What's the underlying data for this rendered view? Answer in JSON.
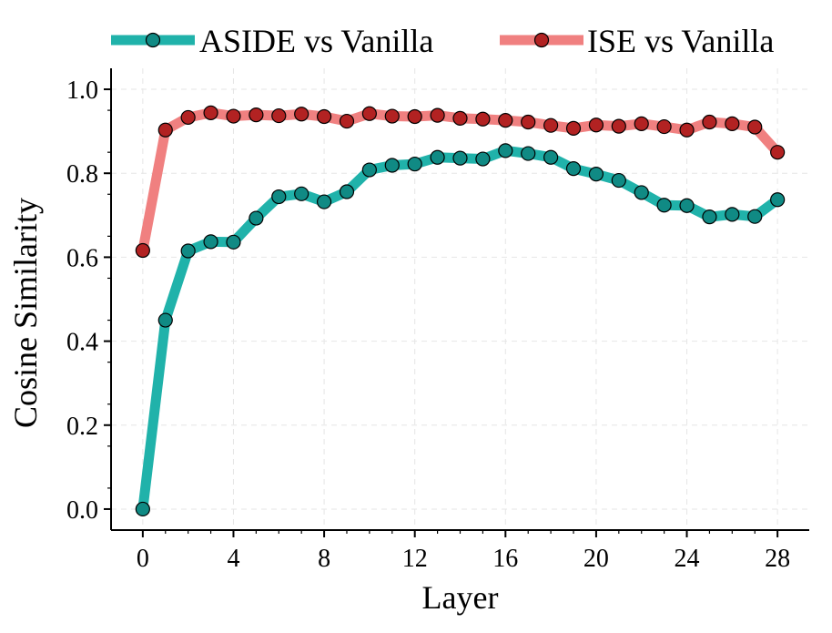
{
  "chart_data": {
    "type": "line",
    "title": "",
    "xlabel": "Layer",
    "ylabel": "Cosine Similarity",
    "xlim": [
      -1.4,
      29.4
    ],
    "ylim": [
      -0.05,
      1.05
    ],
    "xticks": [
      0,
      4,
      8,
      12,
      16,
      20,
      24,
      28
    ],
    "xtick_labels": [
      "0",
      "4",
      "8",
      "12",
      "16",
      "20",
      "24",
      "28"
    ],
    "yticks": [
      0.0,
      0.2,
      0.4,
      0.6,
      0.8,
      1.0
    ],
    "ytick_labels": [
      "0.0",
      "0.2",
      "0.4",
      "0.6",
      "0.8",
      "1.0"
    ],
    "grid": true,
    "legend_position": "top",
    "x": [
      0,
      1,
      2,
      3,
      4,
      5,
      6,
      7,
      8,
      9,
      10,
      11,
      12,
      13,
      14,
      15,
      16,
      17,
      18,
      19,
      20,
      21,
      22,
      23,
      24,
      25,
      26,
      27,
      28
    ],
    "series": [
      {
        "name": "ASIDE vs Vanilla",
        "line_color": "#20b2aa",
        "marker_color": "#108a84",
        "values": [
          0.0,
          0.45,
          0.615,
          0.637,
          0.636,
          0.693,
          0.744,
          0.751,
          0.732,
          0.756,
          0.808,
          0.819,
          0.822,
          0.838,
          0.836,
          0.834,
          0.854,
          0.847,
          0.838,
          0.811,
          0.798,
          0.783,
          0.754,
          0.724,
          0.723,
          0.696,
          0.702,
          0.697,
          0.737
        ]
      },
      {
        "name": "ISE vs Vanilla",
        "line_color": "#f08080",
        "marker_color": "#b22222",
        "values": [
          0.616,
          0.903,
          0.933,
          0.944,
          0.936,
          0.939,
          0.937,
          0.941,
          0.935,
          0.924,
          0.942,
          0.936,
          0.935,
          0.938,
          0.931,
          0.929,
          0.926,
          0.922,
          0.914,
          0.907,
          0.915,
          0.912,
          0.918,
          0.911,
          0.903,
          0.922,
          0.918,
          0.91,
          0.85
        ]
      }
    ]
  }
}
